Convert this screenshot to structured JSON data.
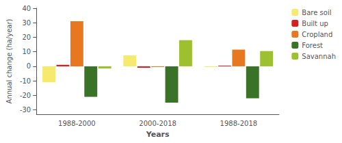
{
  "chart_data": {
    "type": "bar",
    "xlabel": "Years",
    "ylabel": "Annual change (ha/year)",
    "categories": [
      "1988-2000",
      "2000-2018",
      "1988-2018"
    ],
    "series": [
      {
        "name": "Bare soil",
        "color": "#F5E96E",
        "values": [
          -11,
          7.5,
          -0.5
        ]
      },
      {
        "name": "Built up",
        "color": "#D42020",
        "values": [
          1,
          -1,
          0.5
        ]
      },
      {
        "name": "Cropland",
        "color": "#E87820",
        "values": [
          31,
          -0.5,
          11.5
        ]
      },
      {
        "name": "Forest",
        "color": "#3A7228",
        "values": [
          -21,
          -25,
          -22
        ]
      },
      {
        "name": "Savannah",
        "color": "#9DC030",
        "values": [
          -1.5,
          18,
          10.5
        ]
      }
    ],
    "ylim": [
      -33,
      40
    ],
    "yticks": [
      -30,
      -20,
      -10,
      0,
      10,
      20,
      30,
      40
    ],
    "grid": false,
    "legend": "upper right"
  }
}
